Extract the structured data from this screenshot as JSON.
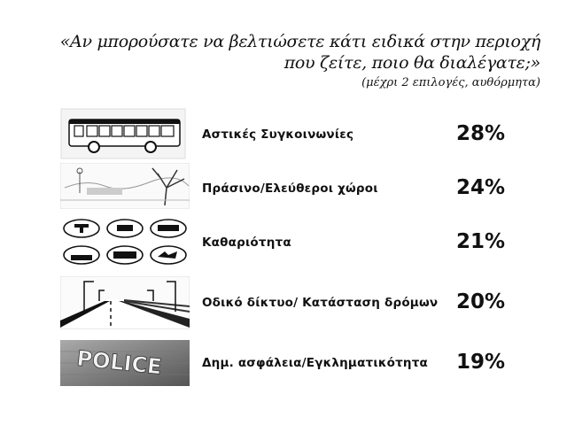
{
  "question": {
    "line1": "«Αν μπορούσατε να βελτιώσετε κάτι ειδικά στην περιοχή",
    "line2": "που ζείτε, ποιο θα διαλέγατε;»",
    "note": "(μέχρι 2 επιλογές, αυθόρμητα)"
  },
  "items": [
    {
      "label": "Αστικές Συγκοινωνίες",
      "percent": "28%",
      "value": 28,
      "icon": "bus-icon"
    },
    {
      "label": "Πράσινο/Ελεύθεροι χώροι",
      "percent": "24%",
      "value": 24,
      "icon": "park-tree-icon"
    },
    {
      "label": "Καθαριότητα",
      "percent": "21%",
      "value": 21,
      "icon": "cleanliness-icons"
    },
    {
      "label": "Οδικό δίκτυο/ Κατάσταση δρόμων",
      "percent": "20%",
      "value": 20,
      "icon": "road-icon"
    },
    {
      "label": "Δημ. ασφάλεια/Εγκληματικότητα",
      "percent": "19%",
      "value": 19,
      "icon": "police-sign-icon"
    }
  ],
  "police_sign_text": "POLICE"
}
